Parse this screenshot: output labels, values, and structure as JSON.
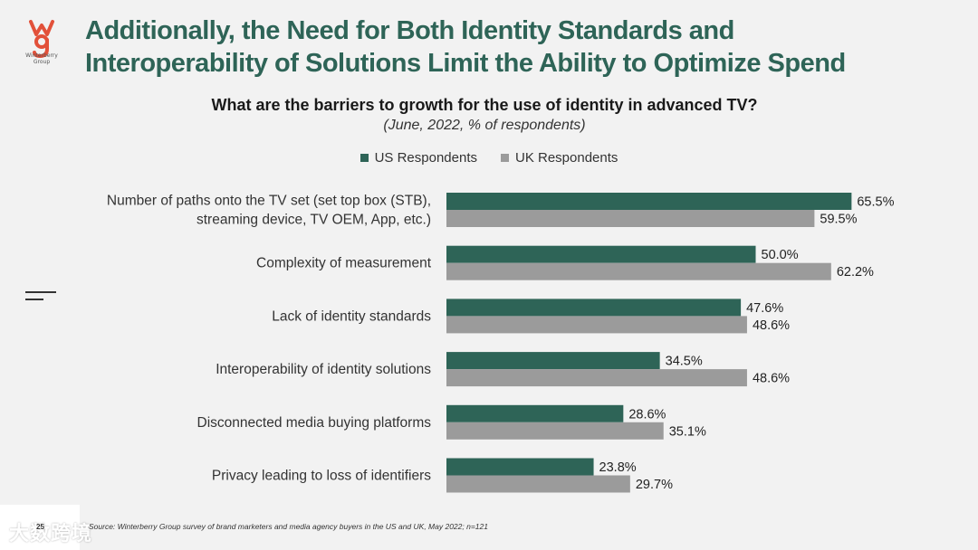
{
  "logo": {
    "name": "winterberry-logo-icon",
    "text": "Winterberry Group",
    "color": "#e2513a"
  },
  "slide_title_line1": "Additionally, the Need for Both Identity Standards and",
  "slide_title_line2": "Interoperability of Solutions Limit the Ability to Optimize Spend",
  "chart_data": {
    "type": "bar",
    "orientation": "horizontal",
    "title": "What are the barriers to growth for the use of identity in advanced TV?",
    "subtitle": "(June, 2022, % of respondents)",
    "categories": [
      [
        "Number of paths onto the TV set (set top box (STB),",
        "streaming device, TV OEM, App, etc.)"
      ],
      [
        "Complexity of measurement"
      ],
      [
        "Lack of identity standards"
      ],
      [
        "Interoperability of identity solutions"
      ],
      [
        "Disconnected media buying platforms"
      ],
      [
        "Privacy leading to loss of identifiers"
      ]
    ],
    "series": [
      {
        "name": "US Respondents",
        "color": "#2e6457",
        "values": [
          65.5,
          50.0,
          47.6,
          34.5,
          28.6,
          23.8
        ],
        "labels": [
          "65.5%",
          "50.0%",
          "47.6%",
          "34.5%",
          "28.6%",
          "23.8%"
        ]
      },
      {
        "name": "UK Respondents",
        "color": "#9b9b9b",
        "values": [
          59.5,
          62.2,
          48.6,
          48.6,
          35.1,
          29.7
        ],
        "labels": [
          "59.5%",
          "62.2%",
          "48.6%",
          "48.6%",
          "35.1%",
          "29.7%"
        ]
      }
    ],
    "xlim": [
      0,
      70
    ],
    "legend": "top-center",
    "grid": false
  },
  "footer": {
    "page_number": "25",
    "source": "Source: Winterberry Group survey of brand marketers and media agency buyers in the US and UK, May 2022; n=121",
    "watermark": "大数跨境"
  }
}
